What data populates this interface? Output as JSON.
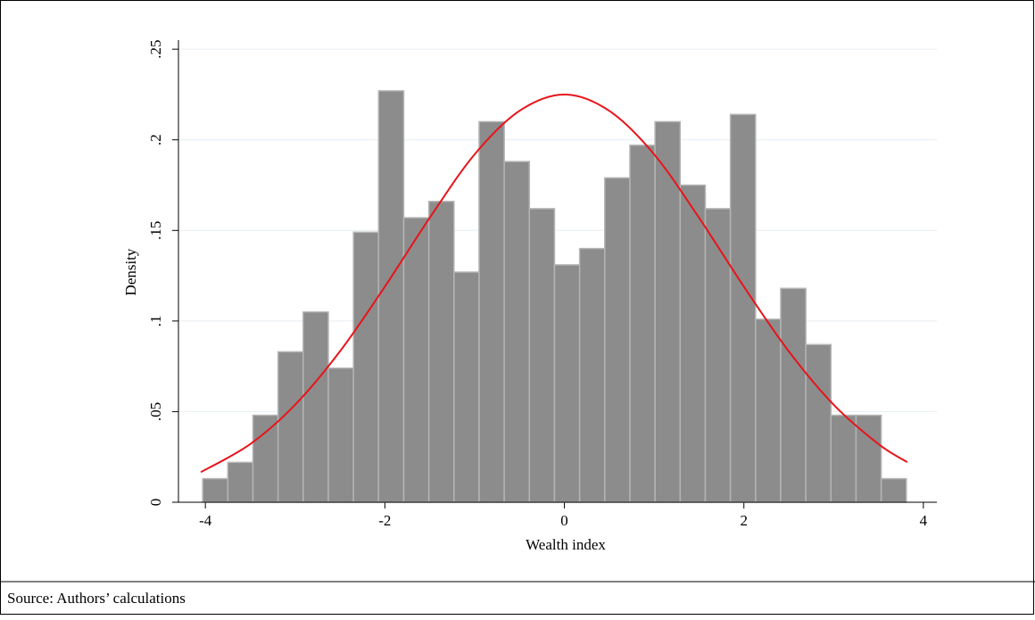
{
  "chart_data": {
    "type": "histogram",
    "source": "Source: Authors’ calculations",
    "x_label": "Wealth index",
    "y_label": "Density",
    "bins": [
      -4.03,
      -3.75,
      -3.47,
      -3.19,
      -2.91,
      -2.63,
      -2.35,
      -2.07,
      -1.79,
      -1.51,
      -1.23,
      -0.95,
      -0.67,
      -0.39,
      -0.11,
      0.17,
      0.45,
      0.73,
      1.01,
      1.29,
      1.57,
      1.85,
      2.13,
      2.41,
      2.69,
      2.97,
      3.25,
      3.53,
      3.81
    ],
    "values": [
      0.013,
      0.022,
      0.048,
      0.083,
      0.105,
      0.074,
      0.149,
      0.227,
      0.157,
      0.166,
      0.127,
      0.21,
      0.188,
      0.162,
      0.131,
      0.14,
      0.179,
      0.197,
      0.21,
      0.175,
      0.162,
      0.214,
      0.101,
      0.118,
      0.087,
      0.048,
      0.048,
      0.013
    ],
    "color": "#8c8c8c",
    "edge_color": "#b4b4b4",
    "curve": {
      "type": "line",
      "color": "#e8141a",
      "x": [
        -4.05,
        -3.5,
        -3,
        -2.5,
        -2,
        -1.5,
        -1,
        -0.5,
        0,
        0.5,
        1,
        1.5,
        2,
        2.5,
        3,
        3.5,
        3.82
      ],
      "values": [
        0.0166,
        0.0321,
        0.0538,
        0.0833,
        0.119,
        0.157,
        0.192,
        0.216,
        0.225,
        0.216,
        0.192,
        0.157,
        0.119,
        0.0833,
        0.0538,
        0.0321,
        0.0221
      ]
    },
    "xlim": [
      -4.3,
      4.15
    ],
    "ylim": [
      0,
      0.255
    ],
    "xticks": [
      -4,
      -2,
      0,
      2,
      4
    ],
    "yticks": [
      {
        "value": 0,
        "label": "0"
      },
      {
        "value": 0.05,
        "label": ".05"
      },
      {
        "value": 0.1,
        "label": ".1"
      },
      {
        "value": 0.15,
        "label": ".15"
      },
      {
        "value": 0.2,
        "label": ".2"
      },
      {
        "value": 0.25,
        "label": ".25"
      }
    ],
    "grid": true
  }
}
